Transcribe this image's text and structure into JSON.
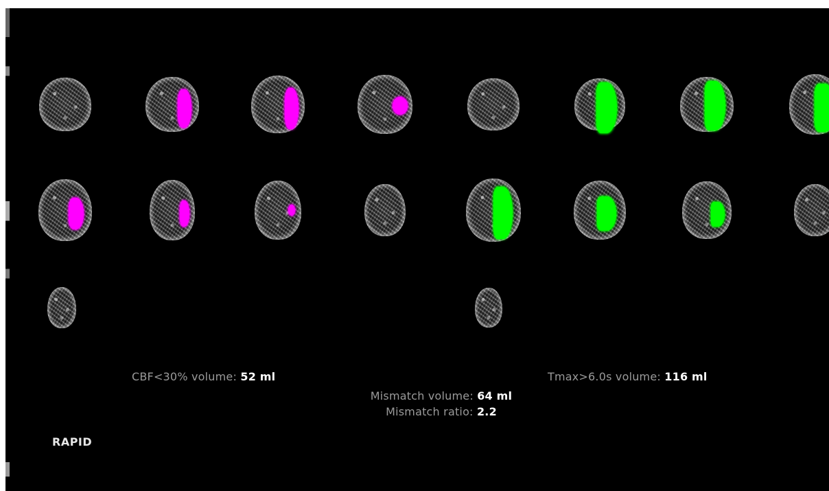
{
  "brand": "RAPID",
  "stats": {
    "cbf": {
      "label": "CBF<30% volume:",
      "value": "52 ml"
    },
    "tmax": {
      "label": "Tmax>6.0s volume:",
      "value": "116 ml"
    },
    "mismatch_volume": {
      "label": "Mismatch volume:",
      "value": "64 ml"
    },
    "mismatch_ratio": {
      "label": "Mismatch ratio:",
      "value": "2.2"
    }
  },
  "colors": {
    "cbf_lesion": "#ff00ff",
    "tmax_lesion": "#00ff00",
    "background": "#000000",
    "label_text": "#9a9a9a",
    "value_text": "#ffffff"
  },
  "panels": {
    "cbf": {
      "slice_count": 9,
      "lesion_color": "magenta"
    },
    "tmax": {
      "slice_count": 9,
      "lesion_color": "green"
    }
  }
}
